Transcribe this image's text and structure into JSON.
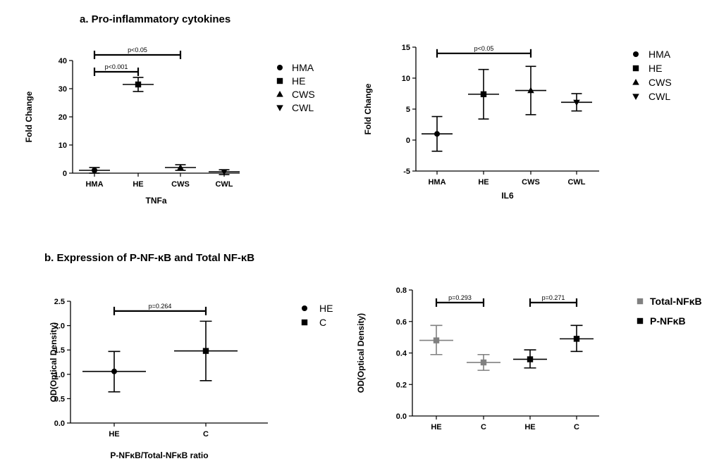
{
  "titles": {
    "a": "a. Pro-inflammatory cytokines",
    "b": "b. Expression of P-NF-κB and Total NF-κB"
  },
  "chart_data": [
    {
      "id": "tnfa",
      "type": "scatter",
      "subtype": "mean-with-error-bars",
      "xlabel": "TNFa",
      "ylabel": "Fold Change",
      "categories": [
        "HMA",
        "HE",
        "CWS",
        "CWL"
      ],
      "ylim": [
        0,
        40
      ],
      "yticks": [
        "0",
        "10",
        "20",
        "30",
        "40"
      ],
      "ytick_values": [
        0,
        10,
        20,
        30,
        40
      ],
      "series": [
        {
          "name": "HMA",
          "marker": "circle",
          "mean": 1.0,
          "err_low": 0.0,
          "err_high": 2.0
        },
        {
          "name": "HE",
          "marker": "square",
          "mean": 31.5,
          "err_low": 29.0,
          "err_high": 34.0
        },
        {
          "name": "CWS",
          "marker": "triangle-up",
          "mean": 2.0,
          "err_low": 1.0,
          "err_high": 3.0
        },
        {
          "name": "CWL",
          "marker": "triangle-down",
          "mean": 0.5,
          "err_low": -0.5,
          "err_high": 1.2
        }
      ],
      "legend": [
        "HMA",
        "HE",
        "CWS",
        "CWL"
      ],
      "brackets": [
        {
          "from": "HMA",
          "to": "HE",
          "level": 36,
          "label": "p<0.001"
        },
        {
          "from": "HMA",
          "to": "CWS",
          "level": 42,
          "label": "p<0.05"
        }
      ]
    },
    {
      "id": "il6",
      "type": "scatter",
      "subtype": "mean-with-error-bars",
      "xlabel": "IL6",
      "ylabel": "Fold Change",
      "categories": [
        "HMA",
        "HE",
        "CWS",
        "CWL"
      ],
      "ylim": [
        -5,
        15
      ],
      "yticks": [
        "-5",
        "0",
        "5",
        "10",
        "15"
      ],
      "ytick_values": [
        -5,
        0,
        5,
        10,
        15
      ],
      "series": [
        {
          "name": "HMA",
          "marker": "circle",
          "mean": 1.0,
          "err_low": -1.8,
          "err_high": 3.8
        },
        {
          "name": "HE",
          "marker": "square",
          "mean": 7.4,
          "err_low": 3.4,
          "err_high": 11.4
        },
        {
          "name": "CWS",
          "marker": "triangle-up",
          "mean": 8.0,
          "err_low": 4.1,
          "err_high": 11.9
        },
        {
          "name": "CWL",
          "marker": "triangle-down",
          "mean": 6.1,
          "err_low": 4.7,
          "err_high": 7.5
        }
      ],
      "legend": [
        "HMA",
        "HE",
        "CWS",
        "CWL"
      ],
      "brackets": [
        {
          "from": "HMA",
          "to": "CWS",
          "level": 14.0,
          "label": "p<0.05"
        }
      ]
    },
    {
      "id": "ratio",
      "type": "scatter",
      "subtype": "mean-with-error-bars",
      "xlabel": "P-NFκB/Total-NFκB ratio",
      "ylabel": "OD(Optical Density)",
      "categories": [
        "HE",
        "C"
      ],
      "ylim": [
        0,
        2.5
      ],
      "yticks": [
        "0.0",
        "0.5",
        "1.0",
        "1.5",
        "2.0",
        "2.5"
      ],
      "ytick_values": [
        0,
        0.5,
        1.0,
        1.5,
        2.0,
        2.5
      ],
      "series": [
        {
          "name": "HE",
          "marker": "circle",
          "mean": 1.06,
          "err_low": 0.64,
          "err_high": 1.47
        },
        {
          "name": "C",
          "marker": "square",
          "mean": 1.48,
          "err_low": 0.87,
          "err_high": 2.09
        }
      ],
      "legend": [
        "HE",
        "C"
      ],
      "brackets": [
        {
          "from": "HE",
          "to": "C",
          "level": 2.3,
          "label": "p=0.264"
        }
      ]
    },
    {
      "id": "nfkb",
      "type": "scatter",
      "subtype": "mean-with-error-bars",
      "xlabel": "",
      "ylabel": "OD(Optical Density)",
      "categories": [
        "HE",
        "C",
        "HE",
        "C"
      ],
      "ylim": [
        0,
        0.8
      ],
      "yticks": [
        "0.0",
        "0.2",
        "0.4",
        "0.6",
        "0.8"
      ],
      "ytick_values": [
        0,
        0.2,
        0.4,
        0.6,
        0.8
      ],
      "series": [
        {
          "name": "Total-NFκB",
          "color": "#808080",
          "marker": "square",
          "points": [
            {
              "index": 0,
              "mean": 0.48,
              "err_low": 0.39,
              "err_high": 0.575
            },
            {
              "index": 1,
              "mean": 0.34,
              "err_low": 0.29,
              "err_high": 0.39
            }
          ]
        },
        {
          "name": "P-NFκB",
          "color": "#000000",
          "marker": "square",
          "points": [
            {
              "index": 2,
              "mean": 0.36,
              "err_low": 0.305,
              "err_high": 0.42
            },
            {
              "index": 3,
              "mean": 0.49,
              "err_low": 0.41,
              "err_high": 0.575
            }
          ]
        }
      ],
      "legend": [
        "Total-NFκB",
        "P-NFκB"
      ],
      "brackets": [
        {
          "from_index": 0,
          "to_index": 1,
          "level": 0.72,
          "label": "p=0.293"
        },
        {
          "from_index": 2,
          "to_index": 3,
          "level": 0.72,
          "label": "p=0.271"
        }
      ]
    }
  ]
}
